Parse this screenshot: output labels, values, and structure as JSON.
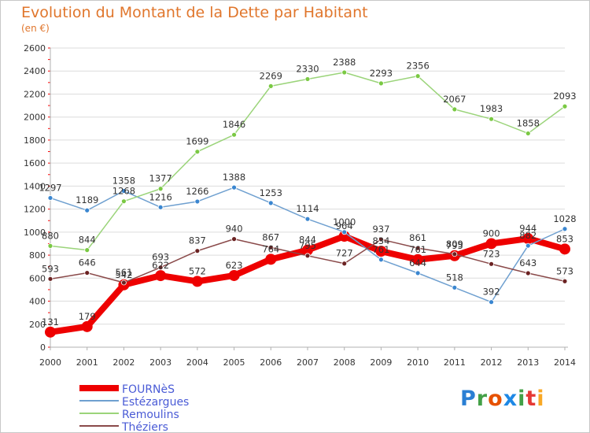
{
  "header": {
    "title": "Evolution du Montant de la Dette par Habitant",
    "subtitle": "(en €)"
  },
  "brand": {
    "letters": [
      "P",
      "r",
      "o",
      "x",
      "i",
      "t",
      "i"
    ]
  },
  "colors": {
    "axis": "#b0b0b0",
    "grid": "#dcdcdc",
    "tick_marks": "#ff0000",
    "text": "#333333"
  },
  "chart_data": {
    "type": "line",
    "title": "Evolution du Montant de la Dette par Habitant",
    "ylabel": "(en €)",
    "xlabel": "",
    "ylim": [
      0,
      2600
    ],
    "yticks": [
      0,
      200,
      400,
      600,
      800,
      1000,
      1200,
      1400,
      1600,
      1800,
      2000,
      2200,
      2400,
      2600
    ],
    "categories": [
      "2000",
      "2001",
      "2002",
      "2003",
      "2004",
      "2005",
      "2006",
      "2007",
      "2008",
      "2009",
      "2010",
      "2011",
      "2012",
      "2013",
      "2014"
    ],
    "grid": true,
    "legend_position": "bottom-left",
    "series": [
      {
        "name": "FOURNèS",
        "color": "#ee0000",
        "dot": "#ee0000",
        "width": 8,
        "dot_r": 7,
        "values": [
          131,
          179,
          542,
          622,
          572,
          623,
          764,
          844,
          964,
          834,
          761,
          795,
          900,
          944,
          853
        ],
        "labels": [
          "131",
          "179",
          "542",
          "622",
          "572",
          "623",
          "764",
          "844",
          "964",
          "834",
          "761",
          "795",
          "900",
          "944",
          "853"
        ]
      },
      {
        "name": "Estézargues",
        "color": "#6fa0d0",
        "dot": "#3a86d0",
        "width": 1.5,
        "dot_r": 3,
        "values": [
          1297,
          1189,
          1358,
          1216,
          1266,
          1388,
          1253,
          1114,
          1000,
          761,
          644,
          518,
          392,
          882,
          1028
        ],
        "labels": [
          "1297",
          "1189",
          "1358",
          "1216",
          "1266",
          "1388",
          "1253",
          "1114",
          "1000",
          "761",
          "644",
          "518",
          "392",
          "882",
          "1028"
        ]
      },
      {
        "name": "Remoulins",
        "color": "#9bd47a",
        "dot": "#7ac943",
        "width": 1.5,
        "dot_r": 3,
        "values": [
          880,
          844,
          1268,
          1377,
          1699,
          1846,
          2269,
          2330,
          2388,
          2293,
          2356,
          2067,
          1983,
          1858,
          2093
        ],
        "labels": [
          "880",
          "844",
          "1268",
          "1377",
          "1699",
          "1846",
          "2269",
          "2330",
          "2388",
          "2293",
          "2356",
          "2067",
          "1983",
          "1858",
          "2093"
        ]
      },
      {
        "name": "Théziers",
        "color": "#8a4a4a",
        "dot": "#6b2222",
        "width": 1.5,
        "dot_r": 3,
        "values": [
          593,
          646,
          561,
          693,
          837,
          940,
          867,
          795,
          727,
          937,
          861,
          809,
          723,
          643,
          573
        ],
        "labels": [
          "593",
          "646",
          "561",
          "693",
          "837",
          "940",
          "867",
          "795",
          "727",
          "937",
          "861",
          "809",
          "723",
          "643",
          "573"
        ]
      }
    ]
  }
}
